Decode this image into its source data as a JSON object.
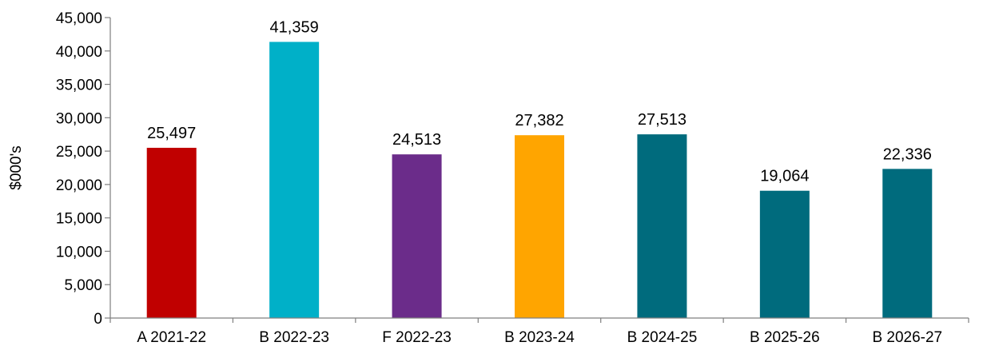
{
  "chart_data": {
    "type": "bar",
    "title": "",
    "xlabel": "",
    "ylabel": "$000's",
    "ylim": [
      0,
      45000
    ],
    "ytick_step": 5000,
    "grid": false,
    "legend": "none",
    "categories": [
      "A 2021-22",
      "B 2022-23",
      "F 2022-23",
      "B 2023-24",
      "B 2024-25",
      "B 2025-26",
      "B 2026-27"
    ],
    "values": [
      25497,
      41359,
      24513,
      27382,
      27513,
      19064,
      22336
    ],
    "value_labels": [
      "25,497",
      "41,359",
      "24,513",
      "27,382",
      "27,513",
      "19,064",
      "22,336"
    ],
    "colors": [
      "#c00000",
      "#00b0c8",
      "#6b2c8a",
      "#ffa500",
      "#006b7d",
      "#006b7d",
      "#006b7d"
    ],
    "axis_color": "#7f7f7f"
  }
}
